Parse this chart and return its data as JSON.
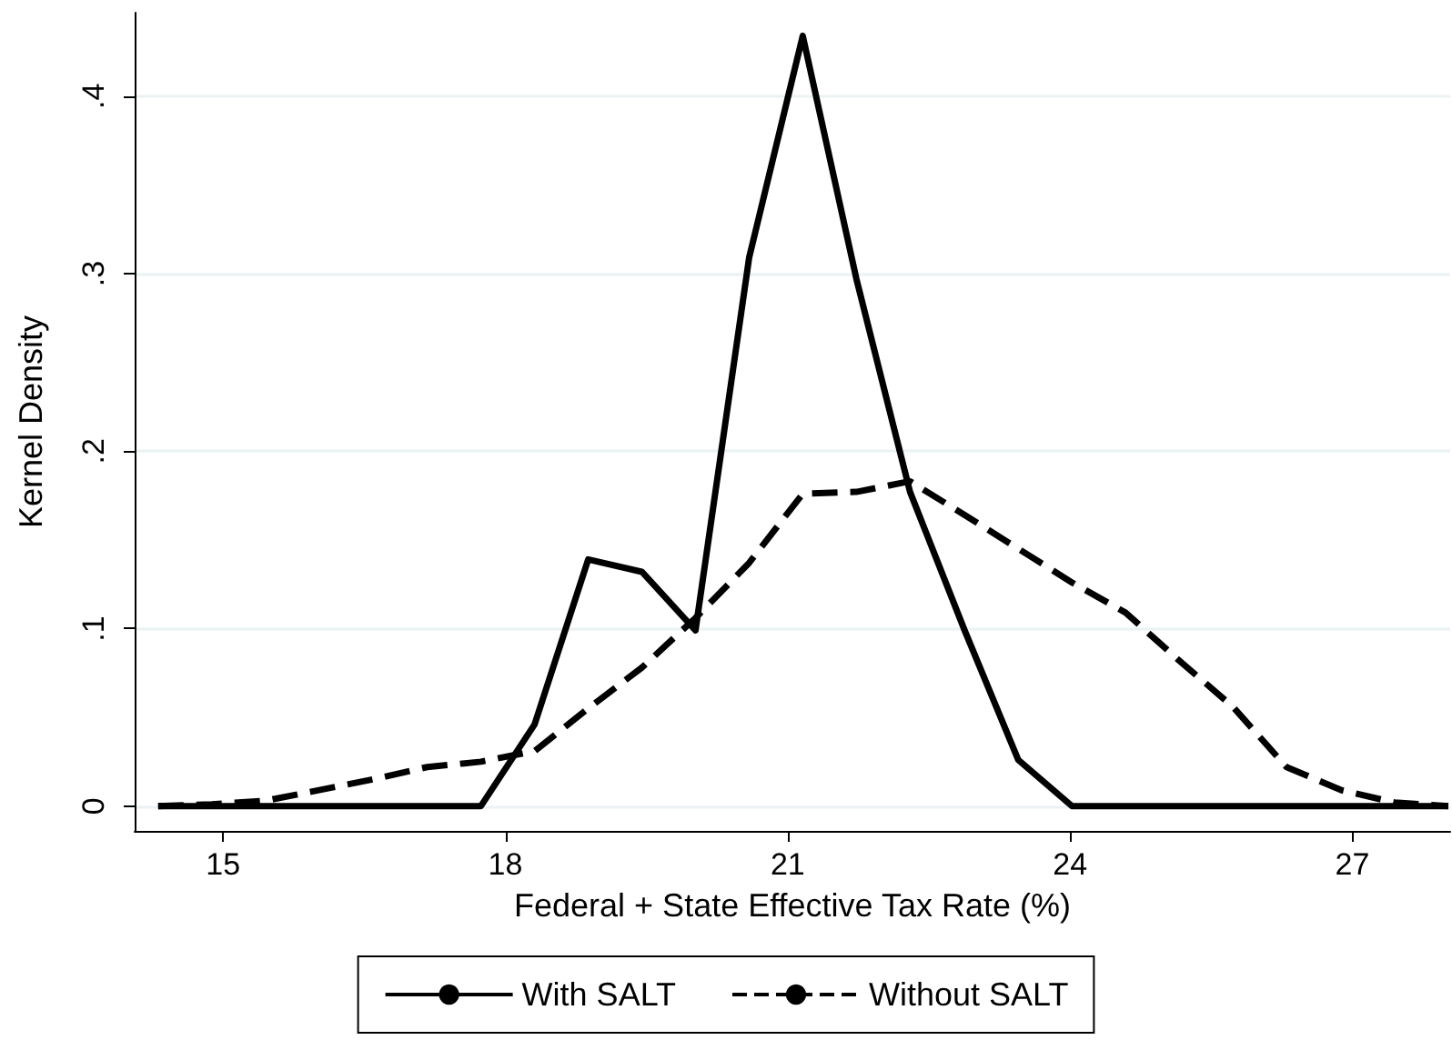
{
  "chart_data": {
    "type": "line",
    "xlabel": "Federal + State Effective Tax Rate (%)",
    "ylabel": "Kernel Density",
    "x": [
      14.31,
      14.88,
      15.45,
      16.02,
      16.59,
      17.17,
      17.74,
      18.31,
      18.88,
      19.45,
      20.02,
      20.59,
      21.16,
      21.73,
      22.3,
      22.88,
      23.45,
      24.02,
      24.59,
      25.16,
      25.73,
      26.3,
      26.88,
      27.45,
      28.02
    ],
    "series": [
      {
        "name": "With SALT",
        "color": "#000000",
        "line_style": "solid",
        "values": [
          0,
          0,
          0,
          0,
          0,
          0,
          0,
          0.046,
          0.139,
          0.132,
          0.099,
          0.309,
          0.434,
          0.297,
          0.177,
          0.099,
          0.026,
          0,
          0,
          0,
          0,
          0,
          0,
          0,
          0
        ]
      },
      {
        "name": "Without SALT",
        "color": "#000000",
        "line_style": "dashed",
        "values": [
          0,
          0.001,
          0.003,
          0.009,
          0.015,
          0.022,
          0.025,
          0.031,
          0.055,
          0.078,
          0.106,
          0.137,
          0.176,
          0.177,
          0.183,
          0.164,
          0.145,
          0.126,
          0.109,
          0.082,
          0.056,
          0.022,
          0.009,
          0.002,
          0
        ]
      }
    ],
    "xlim": [
      14.06,
      28.04
    ],
    "xticks": [
      15,
      18,
      21,
      24,
      27
    ],
    "ylim": [
      -0.014,
      0.447
    ],
    "yticks": [
      0,
      {
        "value": 0.1,
        "label": ".1"
      },
      {
        "value": 0.2,
        "label": ".2"
      },
      {
        "value": 0.3,
        "label": ".3"
      },
      {
        "value": 0.4,
        "label": ".4"
      }
    ],
    "grid": "y",
    "legend": "bottom",
    "marker": "none"
  }
}
